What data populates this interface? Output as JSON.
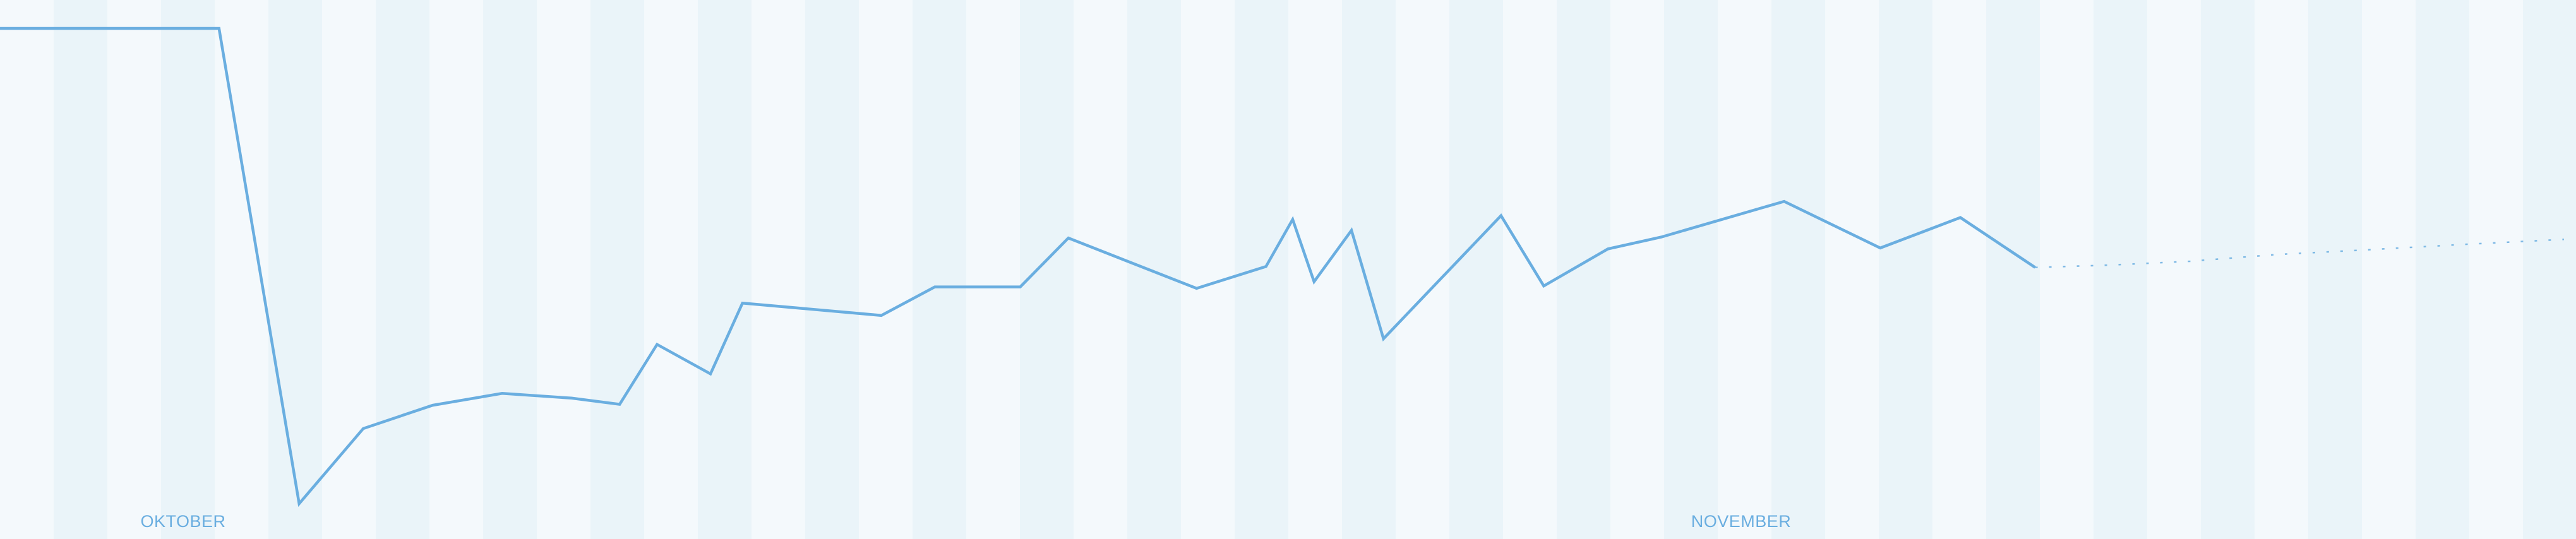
{
  "chart_data": {
    "type": "line",
    "title": "",
    "xlabel": "",
    "ylabel": "",
    "grid": false,
    "x_tick_labels": [
      {
        "label": "OKTOBER",
        "month_index": 0
      },
      {
        "label": "NOVEMBER",
        "month_index": 1
      }
    ],
    "series": [
      {
        "style": "solid",
        "x": [
          0,
          4.1,
          5.6,
          6.8,
          8.1,
          9.4,
          10.7,
          11.6,
          12.3,
          13.3,
          13.9,
          16.5,
          17.5,
          19.1,
          20.0,
          22.4,
          23.7,
          24.2,
          24.6,
          25.3,
          25.9,
          28.1,
          28.9,
          30.1,
          31.1,
          33.4,
          35.2,
          36.7,
          38.1
        ],
        "y": [
          100,
          100,
          0,
          15.8,
          20.7,
          23.2,
          22.2,
          20.9,
          33.5,
          27.3,
          42.2,
          39.6,
          45.6,
          45.6,
          55.9,
          45.3,
          49.9,
          59.8,
          46.7,
          57.5,
          34.7,
          60.6,
          45.8,
          53.6,
          56.1,
          63.6,
          53.8,
          60.2,
          49.7
        ]
      },
      {
        "style": "dotted",
        "x": [
          38.1,
          39.5,
          41.0,
          42.6,
          44.3,
          46.2,
          48.0
        ],
        "y": [
          49.7,
          50.2,
          51.0,
          52.4,
          53.4,
          54.6,
          55.6
        ]
      }
    ],
    "xlim": [
      0,
      48.0
    ],
    "ylim": [
      0,
      100
    ],
    "colors": {
      "line": "#6aaee0",
      "axis_label": "#6aaee0",
      "band_light": "#f4f9fc",
      "band_dark": "#eaf4f9"
    }
  }
}
